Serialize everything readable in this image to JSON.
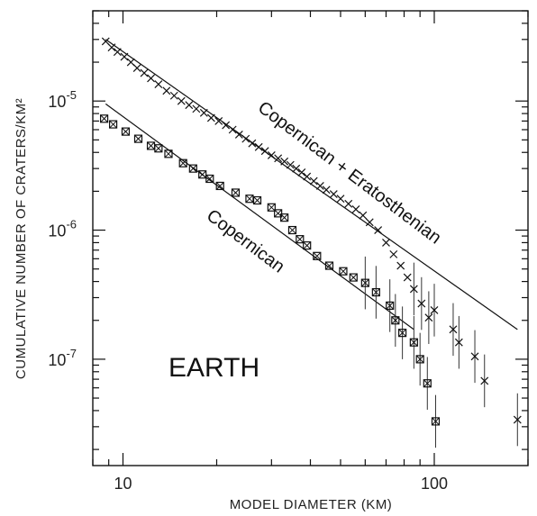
{
  "chart_data": {
    "type": "scatter",
    "title": "",
    "xlabel": "MODEL DIAMETER (KM)",
    "ylabel": "CUMULATIVE NUMBER OF CRATERS/KM²",
    "x_scale": "log",
    "y_scale": "log",
    "xlim": [
      8.0,
      200.0
    ],
    "ylim": [
      1.5e-08,
      5e-05
    ],
    "x_ticks": [
      {
        "value": 10,
        "label": "10"
      },
      {
        "value": 100,
        "label": "100"
      }
    ],
    "y_ticks": [
      {
        "value": 1e-05,
        "base": "10",
        "exp": "-5"
      },
      {
        "value": 1e-06,
        "base": "10",
        "exp": "-6"
      },
      {
        "value": 1e-07,
        "base": "10",
        "exp": "-7"
      }
    ],
    "annotation": "EARTH",
    "grid": false,
    "series": [
      {
        "name": "Copernican + Eratosthenian",
        "marker": "x",
        "points": [
          {
            "x": 8.8,
            "y": 2.9e-05
          },
          {
            "x": 9.2,
            "y": 2.6e-05
          },
          {
            "x": 9.6,
            "y": 2.4e-05
          },
          {
            "x": 10.1,
            "y": 2.2e-05
          },
          {
            "x": 10.6,
            "y": 2e-05
          },
          {
            "x": 11.1,
            "y": 1.8e-05
          },
          {
            "x": 11.7,
            "y": 1.65e-05
          },
          {
            "x": 12.3,
            "y": 1.5e-05
          },
          {
            "x": 13.0,
            "y": 1.35e-05
          },
          {
            "x": 13.8,
            "y": 1.2e-05
          },
          {
            "x": 14.6,
            "y": 1.1e-05
          },
          {
            "x": 15.4,
            "y": 1e-05
          },
          {
            "x": 16.3,
            "y": 9.3e-06
          },
          {
            "x": 17.2,
            "y": 8.7e-06
          },
          {
            "x": 18.2,
            "y": 8.1e-06
          },
          {
            "x": 19.2,
            "y": 7.4e-06
          },
          {
            "x": 20.3,
            "y": 7e-06
          },
          {
            "x": 21.4,
            "y": 6.5e-06
          },
          {
            "x": 22.5,
            "y": 6e-06
          },
          {
            "x": 23.6,
            "y": 5.5e-06
          },
          {
            "x": 24.8,
            "y": 5.1e-06
          },
          {
            "x": 26.0,
            "y": 4.7e-06
          },
          {
            "x": 27.3,
            "y": 4.4e-06
          },
          {
            "x": 28.6,
            "y": 4.1e-06
          },
          {
            "x": 30.0,
            "y": 3.8e-06
          },
          {
            "x": 31.5,
            "y": 3.6e-06
          },
          {
            "x": 33.0,
            "y": 3.4e-06
          },
          {
            "x": 34.5,
            "y": 3.2e-06
          },
          {
            "x": 36.0,
            "y": 3e-06
          },
          {
            "x": 37.5,
            "y": 2.8e-06
          },
          {
            "x": 39.0,
            "y": 2.6e-06
          },
          {
            "x": 41.0,
            "y": 2.4e-06
          },
          {
            "x": 43.0,
            "y": 2.2e-06
          },
          {
            "x": 45.0,
            "y": 2.05e-06
          },
          {
            "x": 47.5,
            "y": 1.9e-06
          },
          {
            "x": 50.0,
            "y": 1.75e-06
          },
          {
            "x": 53.0,
            "y": 1.6e-06
          },
          {
            "x": 56.0,
            "y": 1.45e-06
          },
          {
            "x": 59.0,
            "y": 1.3e-06
          },
          {
            "x": 62.0,
            "y": 1.15e-06
          },
          {
            "x": 66.0,
            "y": 1e-06
          },
          {
            "x": 70.0,
            "y": 8e-07
          },
          {
            "x": 74.0,
            "y": 6.5e-07
          },
          {
            "x": 78.0,
            "y": 5.3e-07
          },
          {
            "x": 82.0,
            "y": 4.3e-07
          },
          {
            "x": 86.0,
            "y": 3.5e-07
          },
          {
            "x": 91.0,
            "y": 2.7e-07
          },
          {
            "x": 96.0,
            "y": 2.1e-07
          },
          {
            "x": 100.0,
            "y": 2.4e-07
          },
          {
            "x": 115.0,
            "y": 1.7e-07
          },
          {
            "x": 120.0,
            "y": 1.35e-07
          },
          {
            "x": 135.0,
            "y": 1.05e-07
          },
          {
            "x": 145.0,
            "y": 6.8e-08
          },
          {
            "x": 185.0,
            "y": 3.4e-08
          }
        ]
      },
      {
        "name": "Copernican",
        "marker": "boxed-x",
        "points": [
          {
            "x": 8.7,
            "y": 7.3e-06
          },
          {
            "x": 9.3,
            "y": 6.6e-06
          },
          {
            "x": 10.2,
            "y": 5.8e-06
          },
          {
            "x": 11.2,
            "y": 5.1e-06
          },
          {
            "x": 12.3,
            "y": 4.5e-06
          },
          {
            "x": 13.0,
            "y": 4.3e-06
          },
          {
            "x": 14.0,
            "y": 3.9e-06
          },
          {
            "x": 15.6,
            "y": 3.3e-06
          },
          {
            "x": 16.8,
            "y": 3e-06
          },
          {
            "x": 18.0,
            "y": 2.7e-06
          },
          {
            "x": 19.0,
            "y": 2.5e-06
          },
          {
            "x": 20.5,
            "y": 2.2e-06
          },
          {
            "x": 23.0,
            "y": 1.95e-06
          },
          {
            "x": 25.5,
            "y": 1.75e-06
          },
          {
            "x": 27.0,
            "y": 1.7e-06
          },
          {
            "x": 30.0,
            "y": 1.5e-06
          },
          {
            "x": 31.5,
            "y": 1.35e-06
          },
          {
            "x": 33.0,
            "y": 1.25e-06
          },
          {
            "x": 35.0,
            "y": 1e-06
          },
          {
            "x": 37.0,
            "y": 8.5e-07
          },
          {
            "x": 39.0,
            "y": 7.6e-07
          },
          {
            "x": 42.0,
            "y": 6.3e-07
          },
          {
            "x": 46.0,
            "y": 5.3e-07
          },
          {
            "x": 51.0,
            "y": 4.8e-07
          },
          {
            "x": 55.0,
            "y": 4.3e-07
          },
          {
            "x": 60.0,
            "y": 3.9e-07
          },
          {
            "x": 65.0,
            "y": 3.3e-07
          },
          {
            "x": 72.0,
            "y": 2.6e-07
          },
          {
            "x": 75.0,
            "y": 2e-07
          },
          {
            "x": 79.0,
            "y": 1.6e-07
          },
          {
            "x": 86.0,
            "y": 1.35e-07
          },
          {
            "x": 90.0,
            "y": 1e-07
          },
          {
            "x": 95.0,
            "y": 6.5e-08
          },
          {
            "x": 101.0,
            "y": 3.3e-08
          }
        ]
      }
    ],
    "fit_lines": [
      {
        "series": "Copernican + Eratosthenian",
        "x1": 8.8,
        "y1": 3e-05,
        "x2": 185.0,
        "y2": 1.7e-07
      },
      {
        "series": "Copernican",
        "x1": 8.8,
        "y1": 9.5e-06,
        "x2": 86.0,
        "y2": 1.7e-07
      }
    ]
  }
}
